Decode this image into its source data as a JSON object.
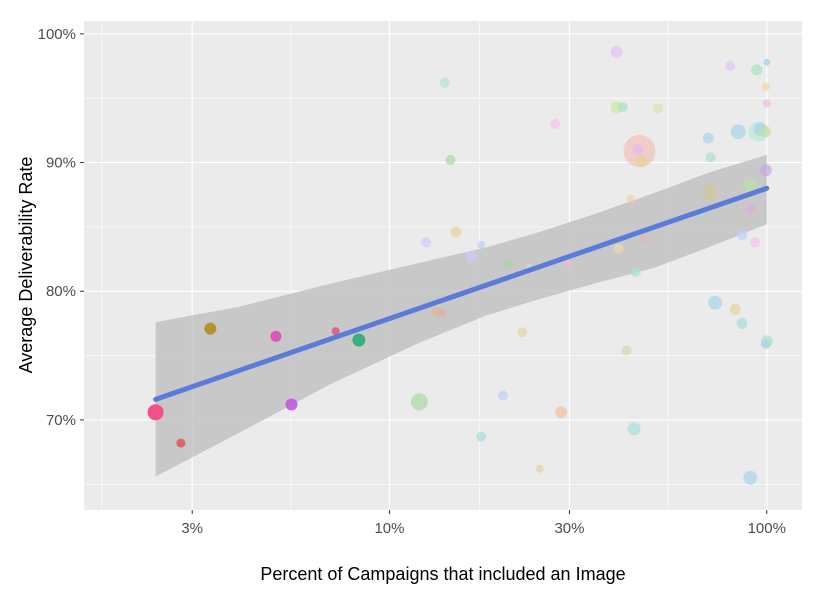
{
  "chart_data": {
    "type": "scatter",
    "xlabel": "Percent of Campaigns that included an Image",
    "ylabel": "Average Deliverability Rate",
    "x_scale": "log",
    "xlim": [
      1.55,
      124
    ],
    "ylim": [
      63,
      101
    ],
    "x_ticks": [
      {
        "value": 3,
        "label": "3%"
      },
      {
        "value": 10,
        "label": "10%"
      },
      {
        "value": 30,
        "label": "30%"
      },
      {
        "value": 100,
        "label": "100%"
      }
    ],
    "y_ticks": [
      {
        "value": 70,
        "label": "70%"
      },
      {
        "value": 80,
        "label": "80%"
      },
      {
        "value": 90,
        "label": "90%"
      },
      {
        "value": 100,
        "label": "100%"
      }
    ],
    "x_minor": [
      1.73,
      5.48,
      17.3,
      54.8
    ],
    "y_minor": [
      65,
      75,
      85,
      95
    ],
    "grid": true,
    "legend": "none",
    "colors": {
      "panel": "#ebebeb",
      "grid": "#ffffff",
      "trend": "#5b7bd8",
      "band": "#bfbfbf",
      "tick_text": "#4d4d4d"
    },
    "trend_line": {
      "x": [
        2.4,
        100
      ],
      "y": [
        71.6,
        88.0
      ]
    },
    "confidence_band": {
      "x": [
        2.4,
        4.0,
        7.0,
        12.0,
        18.0,
        25.0,
        35.0,
        50.0,
        70.0,
        100.0
      ],
      "upper": [
        77.6,
        78.8,
        80.6,
        82.2,
        83.4,
        84.6,
        86.0,
        87.6,
        89.2,
        90.6
      ],
      "lower": [
        65.6,
        69.0,
        72.8,
        76.0,
        78.1,
        79.4,
        80.6,
        81.8,
        83.4,
        85.2
      ]
    },
    "points": [
      {
        "x": 2.4,
        "y": 70.6,
        "size": 8,
        "color": "#f2508a",
        "opacity": 1
      },
      {
        "x": 2.8,
        "y": 68.2,
        "size": 4.5,
        "color": "#d9534f",
        "opacity": 0.8
      },
      {
        "x": 3.35,
        "y": 77.1,
        "size": 6,
        "color": "#b08d1e",
        "opacity": 0.9
      },
      {
        "x": 5.0,
        "y": 76.5,
        "size": 5.5,
        "color": "#de4ab8",
        "opacity": 0.9
      },
      {
        "x": 5.5,
        "y": 71.2,
        "size": 6,
        "color": "#c158e0",
        "opacity": 0.9
      },
      {
        "x": 7.2,
        "y": 76.9,
        "size": 4,
        "color": "#e05a87",
        "opacity": 0.9
      },
      {
        "x": 8.3,
        "y": 76.2,
        "size": 6.5,
        "color": "#2baa78",
        "opacity": 0.9
      },
      {
        "x": 12.0,
        "y": 71.4,
        "size": 8.5,
        "color": "#9ed698",
        "opacity": 0.6
      },
      {
        "x": 12.5,
        "y": 83.8,
        "size": 5,
        "color": "#d9c8f5",
        "opacity": 0.7
      },
      {
        "x": 13.3,
        "y": 78.4,
        "size": 5,
        "color": "#e0b48a",
        "opacity": 0.5
      },
      {
        "x": 13.8,
        "y": 78.3,
        "size": 4,
        "color": "#f0a0a0",
        "opacity": 0.5
      },
      {
        "x": 14.0,
        "y": 96.2,
        "size": 5,
        "color": "#a8e2c4",
        "opacity": 0.6
      },
      {
        "x": 14.5,
        "y": 90.2,
        "size": 5,
        "color": "#9ed698",
        "opacity": 0.6
      },
      {
        "x": 15.0,
        "y": 84.6,
        "size": 5.5,
        "color": "#e2d49c",
        "opacity": 0.7
      },
      {
        "x": 16.5,
        "y": 82.7,
        "size": 6,
        "color": "#d9c8f5",
        "opacity": 0.7
      },
      {
        "x": 17.5,
        "y": 68.7,
        "size": 5,
        "color": "#a6dde0",
        "opacity": 0.7
      },
      {
        "x": 17.5,
        "y": 83.6,
        "size": 4,
        "color": "#bfcff5",
        "opacity": 0.7
      },
      {
        "x": 20.0,
        "y": 71.9,
        "size": 5,
        "color": "#bfcff5",
        "opacity": 0.7
      },
      {
        "x": 20.5,
        "y": 82.1,
        "size": 4.5,
        "color": "#a0d8a8",
        "opacity": 0.7
      },
      {
        "x": 22.5,
        "y": 76.8,
        "size": 5,
        "color": "#e2d49c",
        "opacity": 0.7
      },
      {
        "x": 23.5,
        "y": 81.8,
        "size": 4,
        "color": "#b8e8d8",
        "opacity": 0.6
      },
      {
        "x": 25.0,
        "y": 66.2,
        "size": 4,
        "color": "#e2d49c",
        "opacity": 0.7
      },
      {
        "x": 27.5,
        "y": 93.0,
        "size": 5,
        "color": "#f5c2ec",
        "opacity": 0.7
      },
      {
        "x": 28.5,
        "y": 70.6,
        "size": 6,
        "color": "#f4c09c",
        "opacity": 0.7
      },
      {
        "x": 29.5,
        "y": 82.2,
        "size": 4,
        "color": "#f5b8cc",
        "opacity": 0.7
      },
      {
        "x": 40.0,
        "y": 98.6,
        "size": 6,
        "color": "#e2c8f5",
        "opacity": 0.8
      },
      {
        "x": 40.0,
        "y": 94.3,
        "size": 6,
        "color": "#c8e8a8",
        "opacity": 0.7
      },
      {
        "x": 40.5,
        "y": 83.3,
        "size": 5,
        "color": "#e8d8b0",
        "opacity": 0.7
      },
      {
        "x": 41.5,
        "y": 94.3,
        "size": 5,
        "color": "#a8e2c4",
        "opacity": 0.7
      },
      {
        "x": 42.5,
        "y": 75.4,
        "size": 5,
        "color": "#c8e0a8",
        "opacity": 0.7
      },
      {
        "x": 43.5,
        "y": 87.2,
        "size": 4,
        "color": "#f0d0a8",
        "opacity": 0.7
      },
      {
        "x": 44.5,
        "y": 69.3,
        "size": 6.5,
        "color": "#a6dde0",
        "opacity": 0.7
      },
      {
        "x": 45.0,
        "y": 81.5,
        "size": 5,
        "color": "#a8e2d0",
        "opacity": 0.7
      },
      {
        "x": 46.0,
        "y": 90.9,
        "size": 16,
        "color": "#f5b8b0",
        "opacity": 0.6
      },
      {
        "x": 45.5,
        "y": 91.0,
        "size": 5.5,
        "color": "#e8b8f0",
        "opacity": 0.7
      },
      {
        "x": 46.5,
        "y": 90.1,
        "size": 6,
        "color": "#e2d49c",
        "opacity": 0.8
      },
      {
        "x": 47.5,
        "y": 84.1,
        "size": 5,
        "color": "#e0b8b8",
        "opacity": 0.6
      },
      {
        "x": 51.5,
        "y": 94.2,
        "size": 5,
        "color": "#d8e4b0",
        "opacity": 0.7
      },
      {
        "x": 67.0,
        "y": 86.2,
        "size": 5,
        "color": "#a8d8d8",
        "opacity": 0.7
      },
      {
        "x": 70.0,
        "y": 91.9,
        "size": 5.5,
        "color": "#a6d4e8",
        "opacity": 0.7
      },
      {
        "x": 70.5,
        "y": 87.7,
        "size": 8,
        "color": "#d0c8a0",
        "opacity": 0.8
      },
      {
        "x": 71.0,
        "y": 90.4,
        "size": 5,
        "color": "#a8e2c4",
        "opacity": 0.7
      },
      {
        "x": 73.0,
        "y": 79.1,
        "size": 7,
        "color": "#a6d4e8",
        "opacity": 0.7
      },
      {
        "x": 80.0,
        "y": 97.5,
        "size": 5,
        "color": "#e2c8f5",
        "opacity": 0.7
      },
      {
        "x": 82.5,
        "y": 78.6,
        "size": 5.5,
        "color": "#e2d49c",
        "opacity": 0.7
      },
      {
        "x": 84.0,
        "y": 92.4,
        "size": 7.5,
        "color": "#a6d4e8",
        "opacity": 0.7
      },
      {
        "x": 86.0,
        "y": 84.4,
        "size": 5.5,
        "color": "#bfcff5",
        "opacity": 0.7
      },
      {
        "x": 86.0,
        "y": 77.5,
        "size": 5.5,
        "color": "#a6dde0",
        "opacity": 0.7
      },
      {
        "x": 90.0,
        "y": 88.2,
        "size": 7,
        "color": "#b8e0a8",
        "opacity": 0.7
      },
      {
        "x": 90.5,
        "y": 65.5,
        "size": 7,
        "color": "#a6d4e8",
        "opacity": 0.7
      },
      {
        "x": 91.0,
        "y": 86.4,
        "size": 5,
        "color": "#d8b0d8",
        "opacity": 0.7
      },
      {
        "x": 93.0,
        "y": 83.8,
        "size": 5,
        "color": "#f5c2ec",
        "opacity": 0.7
      },
      {
        "x": 94.0,
        "y": 97.2,
        "size": 5.5,
        "color": "#a8e2c4",
        "opacity": 0.7
      },
      {
        "x": 95.0,
        "y": 92.4,
        "size": 10,
        "color": "#b8e8d8",
        "opacity": 0.7
      },
      {
        "x": 96.0,
        "y": 92.6,
        "size": 6.5,
        "color": "#a6d4e8",
        "opacity": 0.7
      },
      {
        "x": 99.0,
        "y": 92.4,
        "size": 6,
        "color": "#c8e0a8",
        "opacity": 0.7
      },
      {
        "x": 99.5,
        "y": 89.4,
        "size": 6,
        "color": "#c8a8e0",
        "opacity": 0.7
      },
      {
        "x": 99.5,
        "y": 95.9,
        "size": 4,
        "color": "#f0d890",
        "opacity": 0.7
      },
      {
        "x": 100.0,
        "y": 97.8,
        "size": 3.5,
        "color": "#a6d4e8",
        "opacity": 0.8
      },
      {
        "x": 100.0,
        "y": 94.6,
        "size": 4,
        "color": "#f5b8e0",
        "opacity": 0.7
      },
      {
        "x": 100.0,
        "y": 76.1,
        "size": 6,
        "color": "#a8e2c4",
        "opacity": 0.7
      },
      {
        "x": 99.5,
        "y": 75.9,
        "size": 5,
        "color": "#a6d4e8",
        "opacity": 0.7
      }
    ]
  }
}
